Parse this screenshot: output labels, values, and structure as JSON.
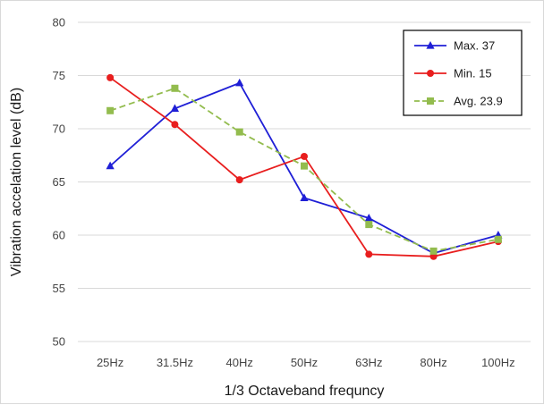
{
  "chart_data": {
    "type": "line",
    "xlabel": "1/3 Octaveband frequncy",
    "ylabel": "Vibration accelation level (dB)",
    "categories": [
      "25Hz",
      "31.5Hz",
      "40Hz",
      "50Hz",
      "63Hz",
      "80Hz",
      "100Hz"
    ],
    "ylim": [
      50,
      80
    ],
    "yticks": [
      50,
      55,
      60,
      65,
      70,
      75,
      80
    ],
    "grid": true,
    "legend_position": "top-right",
    "series": [
      {
        "name": "Max. 37",
        "color": "#1f1fd6",
        "marker": "triangle",
        "dash": "solid",
        "values": [
          66.5,
          71.9,
          74.3,
          63.5,
          61.6,
          58.3,
          60.0
        ]
      },
      {
        "name": "Min. 15",
        "color": "#e81e1e",
        "marker": "circle",
        "dash": "solid",
        "values": [
          74.8,
          70.4,
          65.2,
          67.4,
          58.2,
          58.0,
          59.4
        ]
      },
      {
        "name": "Avg. 23.9",
        "color": "#93bc4e",
        "marker": "square",
        "dash": "dashed",
        "values": [
          71.7,
          73.8,
          69.7,
          66.5,
          61.0,
          58.5,
          59.6
        ]
      }
    ]
  }
}
